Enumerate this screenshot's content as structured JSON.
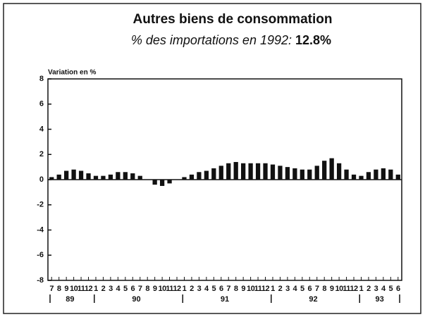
{
  "chart_data": {
    "type": "bar",
    "title": "Autres biens de consommation",
    "subtitle": "% des importations en 1992:",
    "subtitle_value": "12.8%",
    "ylabel": "Variation en %",
    "categories": [
      "7",
      "8",
      "9",
      "10",
      "11",
      "12",
      "1",
      "2",
      "3",
      "4",
      "5",
      "6",
      "7",
      "8",
      "9",
      "10",
      "11",
      "12",
      "1",
      "2",
      "3",
      "4",
      "5",
      "6",
      "7",
      "8",
      "9",
      "10",
      "11",
      "12",
      "1",
      "2",
      "3",
      "4",
      "5",
      "6",
      "7",
      "8",
      "9",
      "10",
      "11",
      "12",
      "1",
      "2",
      "3",
      "4",
      "5",
      "6"
    ],
    "values": [
      0.2,
      0.4,
      0.7,
      0.8,
      0.7,
      0.5,
      0.3,
      0.3,
      0.4,
      0.6,
      0.6,
      0.5,
      0.3,
      0,
      -0.4,
      -0.5,
      -0.3,
      0,
      0.2,
      0.4,
      0.6,
      0.7,
      0.9,
      1.1,
      1.3,
      1.4,
      1.3,
      1.3,
      1.3,
      1.3,
      1.2,
      1.1,
      1.0,
      0.9,
      0.8,
      0.8,
      1.1,
      1.5,
      1.7,
      1.3,
      0.8,
      0.4,
      0.3,
      0.6,
      0.8,
      0.9,
      0.8,
      0.4
    ],
    "year_labels": [
      "89",
      "90",
      "91",
      "92",
      "93"
    ],
    "color": "#111111",
    "ylim": [
      -8,
      8
    ],
    "yticks": [
      -8,
      -6,
      -4,
      -2,
      0,
      2,
      4,
      6,
      8
    ]
  }
}
